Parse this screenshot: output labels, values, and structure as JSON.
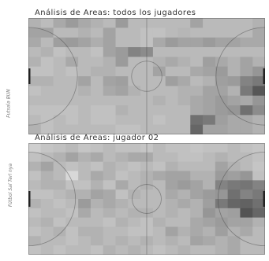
{
  "panels": [
    {
      "title": "Análisis de Areas: todos los jugadores",
      "left_axis_label": "Futsala BUN",
      "left_goal_label": "",
      "right_goal_label": "",
      "heat": [
        [
          0.3,
          0.25,
          0.35,
          0.42,
          0.35,
          0.3,
          0.26,
          0.42,
          0.26,
          0.26,
          0.26,
          0.26,
          0.26,
          0.38,
          0.26,
          0.26,
          0.26,
          0.26,
          0.3
        ],
        [
          0.38,
          0.38,
          0.26,
          0.26,
          0.3,
          0.26,
          0.38,
          0.26,
          0.26,
          0.22,
          0.22,
          0.26,
          0.28,
          0.26,
          0.26,
          0.26,
          0.26,
          0.26,
          0.35
        ],
        [
          0.35,
          0.26,
          0.4,
          0.42,
          0.38,
          0.32,
          0.38,
          0.26,
          0.26,
          0.22,
          0.35,
          0.42,
          0.38,
          0.38,
          0.42,
          0.38,
          0.38,
          0.35,
          0.35
        ],
        [
          0.26,
          0.3,
          0.22,
          0.26,
          0.26,
          0.22,
          0.38,
          0.42,
          0.55,
          0.5,
          0.26,
          0.26,
          0.26,
          0.26,
          0.26,
          0.26,
          0.26,
          0.26,
          0.26
        ],
        [
          0.3,
          0.22,
          0.26,
          0.35,
          0.26,
          0.26,
          0.3,
          0.42,
          0.26,
          0.26,
          0.3,
          0.35,
          0.3,
          0.26,
          0.4,
          0.35,
          0.3,
          0.38,
          0.3
        ],
        [
          0.22,
          0.22,
          0.26,
          0.22,
          0.26,
          0.3,
          0.3,
          0.26,
          0.26,
          0.26,
          0.38,
          0.26,
          0.26,
          0.35,
          0.38,
          0.42,
          0.3,
          0.38,
          0.45
        ],
        [
          0.3,
          0.3,
          0.26,
          0.26,
          0.38,
          0.26,
          0.38,
          0.4,
          0.26,
          0.26,
          0.26,
          0.4,
          0.35,
          0.26,
          0.3,
          0.4,
          0.42,
          0.55,
          0.6
        ],
        [
          0.22,
          0.26,
          0.26,
          0.26,
          0.3,
          0.26,
          0.35,
          0.38,
          0.3,
          0.26,
          0.26,
          0.26,
          0.3,
          0.3,
          0.38,
          0.38,
          0.3,
          0.6,
          0.78
        ],
        [
          0.26,
          0.26,
          0.26,
          0.26,
          0.26,
          0.26,
          0.26,
          0.26,
          0.26,
          0.26,
          0.3,
          0.26,
          0.3,
          0.35,
          0.38,
          0.42,
          0.38,
          0.35,
          0.45
        ],
        [
          0.22,
          0.22,
          0.22,
          0.22,
          0.26,
          0.22,
          0.22,
          0.3,
          0.26,
          0.26,
          0.26,
          0.26,
          0.26,
          0.35,
          0.38,
          0.42,
          0.45,
          0.65,
          0.5
        ],
        [
          0.26,
          0.22,
          0.26,
          0.22,
          0.26,
          0.22,
          0.22,
          0.26,
          0.26,
          0.26,
          0.22,
          0.26,
          0.26,
          0.65,
          0.6,
          0.4,
          0.35,
          0.35,
          0.3
        ],
        [
          0.3,
          0.22,
          0.26,
          0.26,
          0.26,
          0.26,
          0.26,
          0.22,
          0.22,
          0.26,
          0.26,
          0.26,
          0.26,
          0.7,
          0.38,
          0.38,
          0.35,
          0.35,
          0.3
        ]
      ]
    },
    {
      "title": "Análisis de Areas: jugador 02",
      "left_axis_label": "Fútbol Sal Terl nya",
      "left_goal_label": "",
      "right_goal_label": "",
      "heat": [
        [
          0.15,
          0.2,
          0.22,
          0.26,
          0.2,
          0.22,
          0.26,
          0.22,
          0.22,
          0.2,
          0.26,
          0.22,
          0.22,
          0.2,
          0.22,
          0.22,
          0.26,
          0.22,
          0.2
        ],
        [
          0.22,
          0.26,
          0.3,
          0.38,
          0.3,
          0.35,
          0.26,
          0.3,
          0.35,
          0.35,
          0.26,
          0.26,
          0.22,
          0.22,
          0.26,
          0.3,
          0.26,
          0.26,
          0.22
        ],
        [
          0.3,
          0.38,
          0.26,
          0.22,
          0.26,
          0.22,
          0.3,
          0.26,
          0.22,
          0.26,
          0.22,
          0.3,
          0.26,
          0.26,
          0.26,
          0.38,
          0.3,
          0.26,
          0.2
        ],
        [
          0.22,
          0.3,
          0.26,
          0.1,
          0.26,
          0.35,
          0.3,
          0.22,
          0.26,
          0.3,
          0.35,
          0.38,
          0.38,
          0.3,
          0.3,
          0.42,
          0.4,
          0.45,
          0.22
        ],
        [
          0.26,
          0.3,
          0.3,
          0.22,
          0.22,
          0.3,
          0.22,
          0.35,
          0.26,
          0.3,
          0.26,
          0.38,
          0.42,
          0.38,
          0.3,
          0.55,
          0.6,
          0.62,
          0.55
        ],
        [
          0.22,
          0.22,
          0.26,
          0.3,
          0.3,
          0.38,
          0.35,
          0.22,
          0.3,
          0.26,
          0.26,
          0.35,
          0.3,
          0.38,
          0.42,
          0.45,
          0.65,
          0.55,
          0.6
        ],
        [
          0.3,
          0.26,
          0.22,
          0.26,
          0.42,
          0.3,
          0.35,
          0.3,
          0.26,
          0.26,
          0.26,
          0.3,
          0.35,
          0.3,
          0.4,
          0.6,
          0.7,
          0.72,
          0.65
        ],
        [
          0.22,
          0.26,
          0.26,
          0.22,
          0.35,
          0.26,
          0.3,
          0.26,
          0.3,
          0.3,
          0.26,
          0.3,
          0.26,
          0.3,
          0.45,
          0.38,
          0.4,
          0.8,
          0.7
        ],
        [
          0.26,
          0.3,
          0.22,
          0.26,
          0.26,
          0.26,
          0.22,
          0.3,
          0.26,
          0.22,
          0.3,
          0.26,
          0.26,
          0.35,
          0.38,
          0.42,
          0.38,
          0.38,
          0.3
        ],
        [
          0.22,
          0.26,
          0.3,
          0.22,
          0.3,
          0.3,
          0.26,
          0.26,
          0.22,
          0.22,
          0.26,
          0.38,
          0.3,
          0.35,
          0.3,
          0.4,
          0.3,
          0.35,
          0.26
        ],
        [
          0.3,
          0.26,
          0.26,
          0.22,
          0.26,
          0.3,
          0.26,
          0.3,
          0.26,
          0.3,
          0.26,
          0.3,
          0.26,
          0.38,
          0.35,
          0.3,
          0.35,
          0.26,
          0.26
        ],
        [
          0.22,
          0.26,
          0.22,
          0.26,
          0.26,
          0.22,
          0.3,
          0.26,
          0.3,
          0.26,
          0.22,
          0.26,
          0.3,
          0.26,
          0.26,
          0.3,
          0.35,
          0.26,
          0.26
        ]
      ]
    }
  ]
}
